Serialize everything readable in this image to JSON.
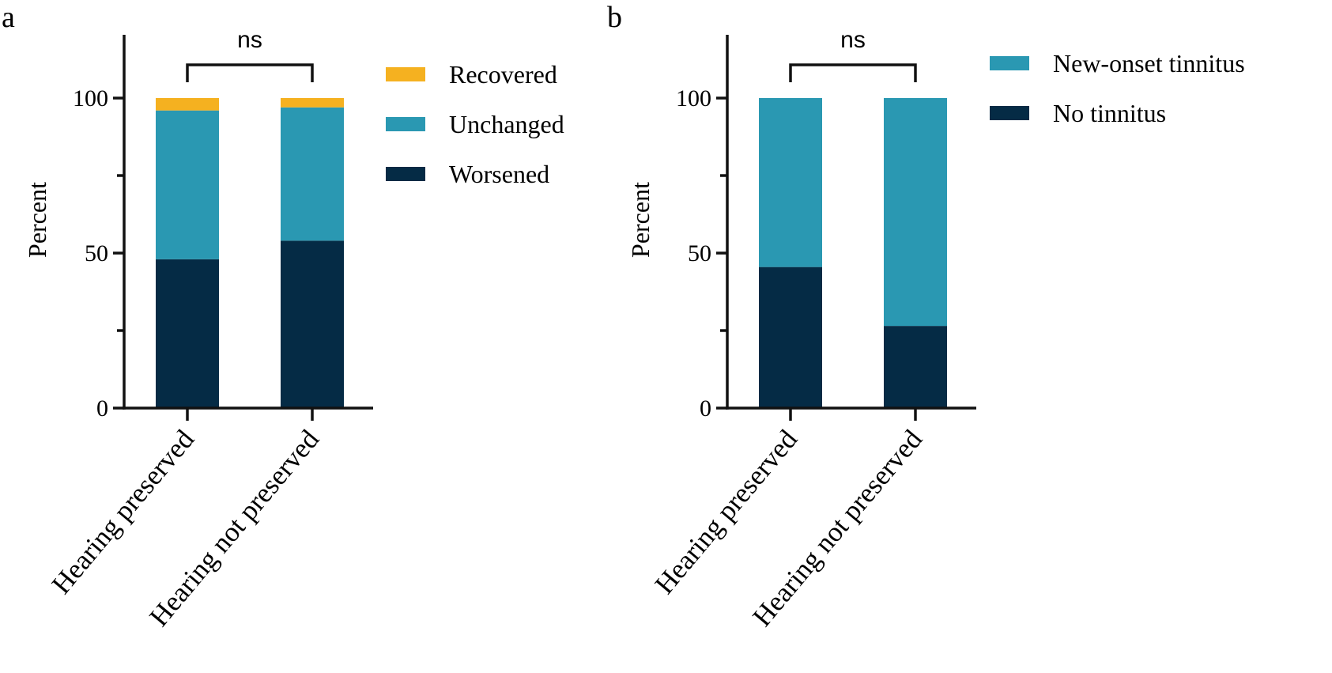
{
  "chart_data": [
    {
      "type": "bar",
      "stacked": true,
      "panel_label": "a",
      "categories": [
        "Hearing preserved",
        "Hearing not preserved"
      ],
      "series": [
        {
          "name": "Worsened",
          "values": [
            48,
            54
          ],
          "color": "#052b45"
        },
        {
          "name": "Unchanged",
          "values": [
            48,
            43
          ],
          "color": "#2a98b2"
        },
        {
          "name": "Recovered",
          "values": [
            4,
            3
          ],
          "color": "#f5b120"
        }
      ],
      "legend_order": [
        "Recovered",
        "Unchanged",
        "Worsened"
      ],
      "ylabel": "Percent",
      "xlabel": "",
      "ylim": [
        0,
        120
      ],
      "yticks": [
        0,
        50,
        100
      ],
      "yticks_minor": [
        25,
        75
      ],
      "significance": {
        "label": "ns",
        "between": [
          "Hearing preserved",
          "Hearing not preserved"
        ]
      },
      "legend_position": "right"
    },
    {
      "type": "bar",
      "stacked": true,
      "panel_label": "b",
      "categories": [
        "Hearing preserved",
        "Hearing not preserved"
      ],
      "series": [
        {
          "name": "No tinnitus",
          "values": [
            45.5,
            26.5
          ],
          "color": "#052b45"
        },
        {
          "name": "New-onset tinnitus",
          "values": [
            54.5,
            73.5
          ],
          "color": "#2a98b2"
        }
      ],
      "legend_order": [
        "New-onset tinnitus",
        "No tinnitus"
      ],
      "ylabel": "Percent",
      "xlabel": "",
      "ylim": [
        0,
        120
      ],
      "yticks": [
        0,
        50,
        100
      ],
      "yticks_minor": [
        25,
        75
      ],
      "significance": {
        "label": "ns",
        "between": [
          "Hearing preserved",
          "Hearing not preserved"
        ]
      },
      "legend_position": "right"
    }
  ]
}
